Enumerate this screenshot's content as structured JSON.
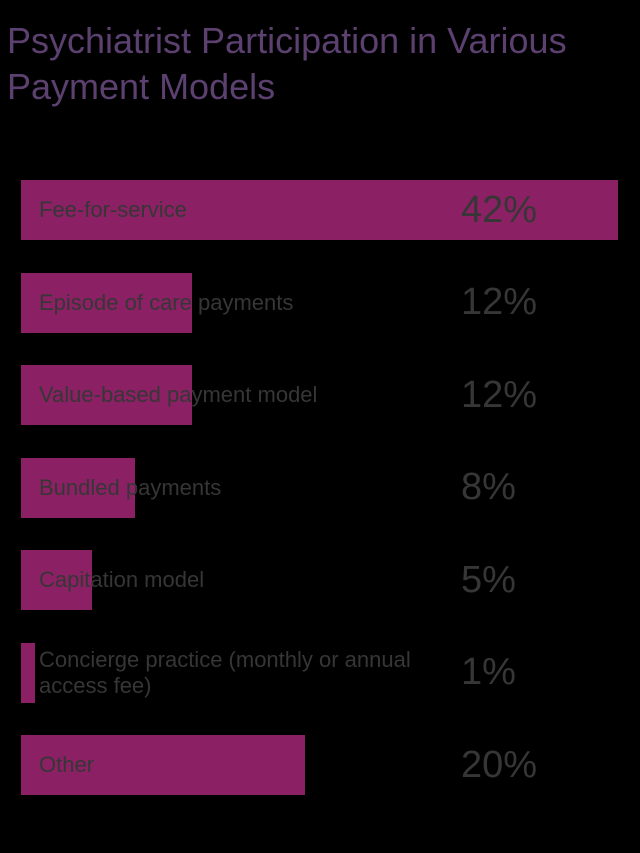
{
  "page": {
    "background_color": "#000000"
  },
  "title": {
    "full_text": "Psychiatrist Participation in Various Payment Models",
    "lines": [
      "Psychiatrist Participation in Various",
      "Payment Models"
    ],
    "color": "#5C4170"
  },
  "chart_data": {
    "type": "bar",
    "orientation": "horizontal",
    "title": "Psychiatrist Participation in Various Payment Models",
    "categories": [
      "Fee-for-service",
      "Episode of care payments",
      "Value-based payment model",
      "Bundled payments",
      "Capitation model",
      "Concierge practice (monthly or annual access fee)",
      "Other"
    ],
    "values": [
      42,
      12,
      12,
      8,
      5,
      1,
      20
    ],
    "value_labels": [
      "42%",
      "12%",
      "12%",
      "8%",
      "5%",
      "1%",
      "20%"
    ],
    "xlim": [
      0,
      42
    ],
    "grid": false,
    "legend": false,
    "bar_color": "#8B2164",
    "text_color": "#363636",
    "value_label_position": "fixed-right-column"
  }
}
